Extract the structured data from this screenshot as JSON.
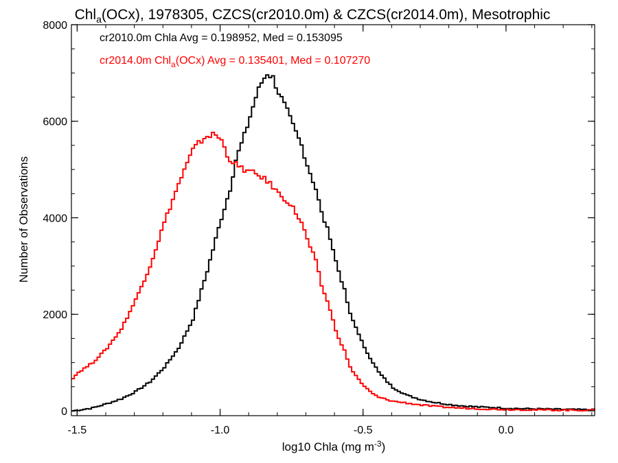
{
  "chart_data": {
    "type": "line",
    "title": {
      "prefix": "Chl",
      "sub": "a",
      "suffix": "(OCx), 1978305, CZCS(cr2010.0m) & CZCS(cr2014.0m), Mesotrophic"
    },
    "xlabel": {
      "text": "log10 Chla (mg m",
      "sup": "-3",
      "tail": ")"
    },
    "ylabel": "Number of Observations",
    "xlim": [
      -1.52,
      0.31
    ],
    "ylim": [
      -100,
      8000
    ],
    "xticks": [
      {
        "value": -1.5,
        "label": "-1.5"
      },
      {
        "value": -1.0,
        "label": "-1.0"
      },
      {
        "value": -0.5,
        "label": "-0.5"
      },
      {
        "value": 0.0,
        "label": "0.0"
      }
    ],
    "yticks": [
      {
        "value": 0,
        "label": "0"
      },
      {
        "value": 2000,
        "label": "2000"
      },
      {
        "value": 4000,
        "label": "4000"
      },
      {
        "value": 6000,
        "label": "6000"
      },
      {
        "value": 8000,
        "label": "8000"
      }
    ],
    "legend": [
      {
        "text": "cr2010.0m Chla Avg = 0.198952, Med = 0.153095",
        "color": "#000000"
      },
      {
        "prefix": "cr2014.0m Chl",
        "sub": "a",
        "suffix": "(OCx) Avg = 0.135401, Med = 0.107270",
        "color": "#ff0000"
      }
    ],
    "series": [
      {
        "color": "#000000",
        "x": [
          -1.52,
          -1.45,
          -1.4,
          -1.35,
          -1.3,
          -1.25,
          -1.2,
          -1.15,
          -1.1,
          -1.05,
          -1.0,
          -0.97,
          -0.95,
          -0.92,
          -0.9,
          -0.88,
          -0.86,
          -0.84,
          -0.82,
          -0.8,
          -0.77,
          -0.75,
          -0.72,
          -0.7,
          -0.67,
          -0.65,
          -0.62,
          -0.6,
          -0.57,
          -0.55,
          -0.52,
          -0.5,
          -0.47,
          -0.45,
          -0.42,
          -0.4,
          -0.35,
          -0.3,
          -0.25,
          -0.2,
          -0.15,
          -0.1,
          -0.05,
          0.0,
          0.05,
          0.1,
          0.15,
          0.2,
          0.25,
          0.31
        ],
        "y": [
          0,
          60,
          150,
          250,
          400,
          600,
          900,
          1300,
          1900,
          2900,
          4000,
          4600,
          5200,
          5700,
          6100,
          6500,
          6800,
          7000,
          6900,
          6600,
          6200,
          5900,
          5500,
          5100,
          4600,
          4100,
          3600,
          3100,
          2500,
          2000,
          1600,
          1300,
          1000,
          800,
          600,
          480,
          320,
          230,
          170,
          130,
          100,
          80,
          70,
          55,
          45,
          40,
          35,
          30,
          25,
          20
        ]
      },
      {
        "color": "#ff0000",
        "x": [
          -1.52,
          -1.5,
          -1.45,
          -1.4,
          -1.35,
          -1.3,
          -1.25,
          -1.2,
          -1.15,
          -1.1,
          -1.07,
          -1.05,
          -1.02,
          -1.0,
          -0.98,
          -0.96,
          -0.94,
          -0.92,
          -0.9,
          -0.88,
          -0.86,
          -0.84,
          -0.82,
          -0.8,
          -0.77,
          -0.75,
          -0.72,
          -0.7,
          -0.67,
          -0.65,
          -0.62,
          -0.6,
          -0.57,
          -0.55,
          -0.52,
          -0.5,
          -0.47,
          -0.45,
          -0.4,
          -0.35,
          -0.3,
          -0.25,
          -0.2,
          -0.15,
          -0.1,
          -0.05,
          0.0,
          0.05,
          0.1,
          0.2,
          0.31
        ],
        "y": [
          680,
          800,
          1000,
          1300,
          1700,
          2300,
          3000,
          3900,
          4700,
          5400,
          5600,
          5700,
          5720,
          5600,
          5300,
          5150,
          5050,
          5000,
          4950,
          4900,
          4850,
          4750,
          4650,
          4500,
          4350,
          4200,
          3900,
          3550,
          3100,
          2600,
          2100,
          1650,
          1250,
          900,
          650,
          500,
          350,
          280,
          200,
          160,
          120,
          90,
          70,
          55,
          45,
          35,
          28,
          25,
          20,
          15,
          12
        ]
      }
    ]
  }
}
